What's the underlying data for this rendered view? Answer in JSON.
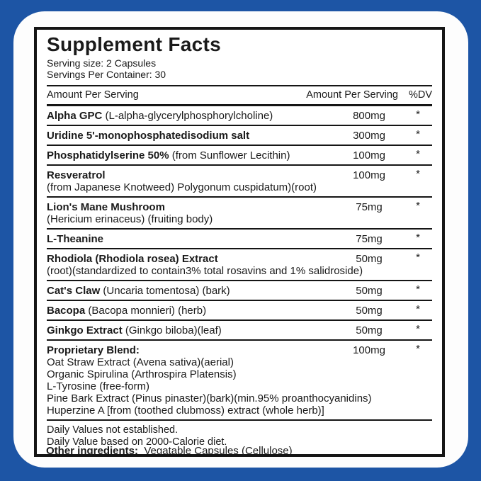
{
  "page": {
    "background_color": "#1d55a5",
    "card_color": "#ffffff",
    "line_color": "#151515"
  },
  "panel": {
    "title": "Supplement Facts",
    "serving_size": "Serving size: 2 Capsules",
    "servings_per_container": "Servings Per Container: 30",
    "header": {
      "left": "Amount Per Serving",
      "right": "Amount Per Serving",
      "dv": "%DV"
    }
  },
  "table": {
    "rows": [
      {
        "name": "Alpha GPC",
        "desc": "(L-alpha-glycerylphosphorylcholine)",
        "lines": [],
        "amount": "800mg",
        "dv": "*"
      },
      {
        "name": "Uridine 5'-monophosphatedisodium salt",
        "desc": "",
        "lines": [],
        "amount": "300mg",
        "dv": "*"
      },
      {
        "name": "Phosphatidylserine 50%",
        "desc": "(from Sunflower Lecithin)",
        "lines": [],
        "amount": "100mg",
        "dv": "*"
      },
      {
        "name": "Resveratrol",
        "desc": "",
        "lines": [
          "(from Japanese Knotweed) Polygonum cuspidatum)(root)"
        ],
        "amount": "100mg",
        "dv": "*"
      },
      {
        "name": "Lion's Mane Mushroom",
        "desc": "",
        "lines": [
          "(Hericium erinaceus) (fruiting body)"
        ],
        "amount": "75mg",
        "dv": "*"
      },
      {
        "name": "L-Theanine",
        "desc": "",
        "lines": [],
        "amount": "75mg",
        "dv": "*"
      },
      {
        "name": "Rhodiola (Rhodiola rosea) Extract",
        "desc": "",
        "lines": [
          "(root)(standardized to contain3% total rosavins and 1% salidroside)"
        ],
        "amount": "50mg",
        "dv": "*"
      },
      {
        "name": "Cat's Claw",
        "desc": "(Uncaria tomentosa) (bark)",
        "lines": [],
        "amount": "50mg",
        "dv": "*"
      },
      {
        "name": "Bacopa",
        "desc": "(Bacopa monnieri) (herb)",
        "lines": [],
        "amount": "50mg",
        "dv": "*"
      },
      {
        "name": "Ginkgo Extract",
        "desc": "(Ginkgo biloba)(leaf)",
        "lines": [],
        "amount": "50mg",
        "dv": "*"
      },
      {
        "name": "Proprietary Blend:",
        "desc": "",
        "lines": [
          "Oat Straw Extract (Avena sativa)(aerial)",
          "Organic Spirulina (Arthrospira Platensis)",
          "L-Tyrosine (free-form)",
          "Pine Bark Extract (Pinus pinaster)(bark)(min.95% proanthocyanidins)",
          "Huperzine A [from (toothed clubmoss) extract (whole herb)]"
        ],
        "amount": "100mg",
        "dv": "*"
      }
    ]
  },
  "footnotes": [
    "Daily Values not established.",
    "Daily Value based on 2000-Calorie diet."
  ],
  "other_ingredients": {
    "label": "Other ingredients:",
    "value": "Vegatable Capsules (Cellulose)"
  }
}
